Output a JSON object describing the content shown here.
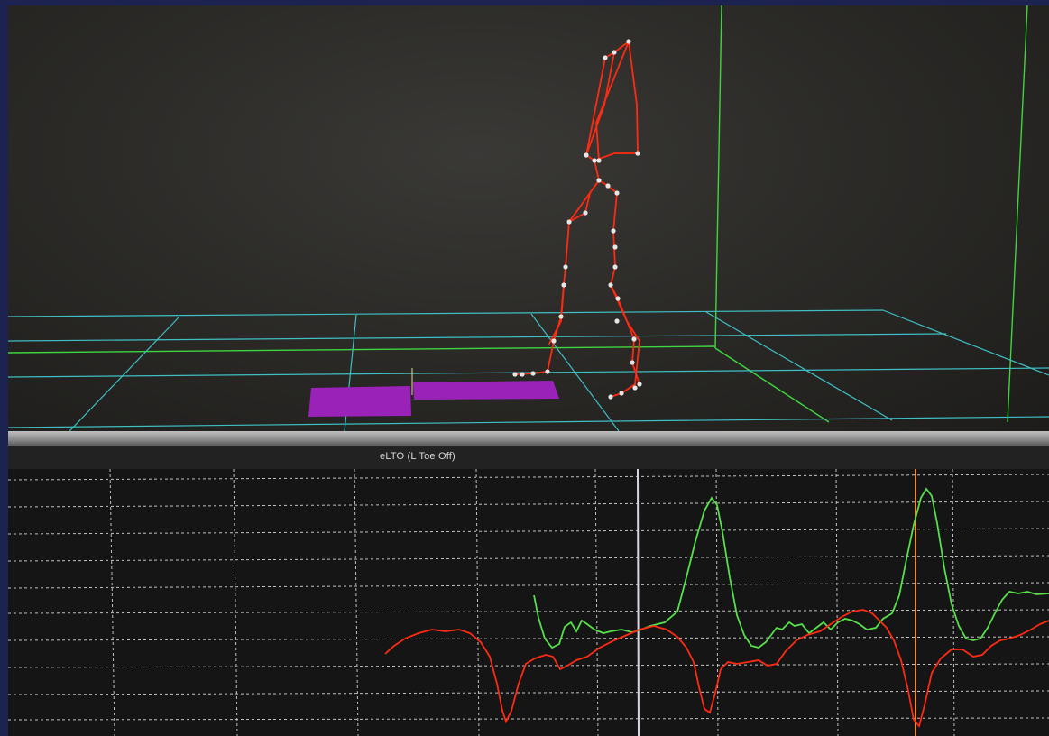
{
  "app": {
    "viewport_3d": {
      "floor_grid_color": "#3fbfc4",
      "capture_volume_color": "#3ed63e",
      "skeleton_color": "#ff2a12",
      "marker_color": "#e6e6e6",
      "force_plate_color": "#9b22b8"
    },
    "graph": {
      "event_label": "eLTO (L Toe Off)",
      "grid_color": "#e0e0e0",
      "cursor_color": "#d9d4e6",
      "event_line_color": "#f08a3a",
      "trace_colors": [
        "#56e04a",
        "#ff2a12"
      ]
    }
  }
}
